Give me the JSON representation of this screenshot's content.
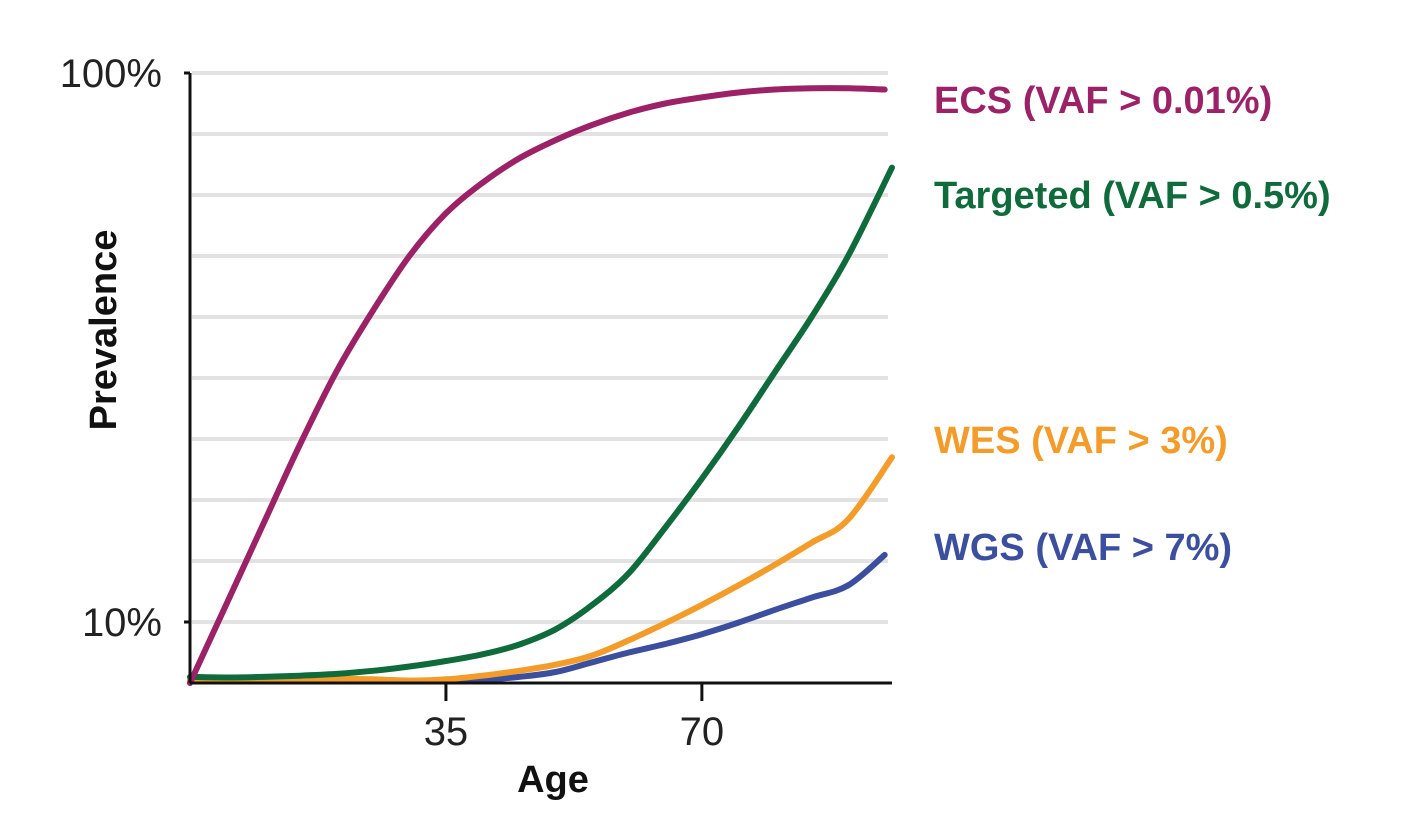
{
  "chart_data": {
    "type": "line",
    "title": "",
    "xlabel": "Age",
    "ylabel": "Prevalence",
    "xlim": [
      0,
      96
    ],
    "ylim": [
      0,
      1
    ],
    "x_ticks": [
      {
        "value": 35,
        "label": "35"
      },
      {
        "value": 70,
        "label": "70"
      }
    ],
    "y_ticks": [
      {
        "value": 0.1,
        "label": "10%"
      },
      {
        "value": 1.0,
        "label": "100%"
      }
    ],
    "gridlines": [
      0.1,
      0.2,
      0.3,
      0.4,
      0.5,
      0.6,
      0.7,
      0.8,
      0.9,
      1.0
    ],
    "grid": true,
    "legend_placement": "right",
    "series": [
      {
        "name": "ECS (VAF > 0.01%)",
        "color": "#9b2266",
        "x": [
          0,
          5,
          10,
          15,
          20,
          25,
          30,
          35,
          40,
          45,
          50,
          55,
          60,
          65,
          70,
          75,
          80,
          85,
          90,
          95
        ],
        "y": [
          0.0,
          0.13,
          0.26,
          0.39,
          0.51,
          0.61,
          0.7,
          0.77,
          0.82,
          0.86,
          0.89,
          0.915,
          0.935,
          0.95,
          0.96,
          0.968,
          0.973,
          0.975,
          0.975,
          0.973
        ]
      },
      {
        "name": "Targeted (VAF > 0.5%)",
        "color": "#0f6b3c",
        "x": [
          0,
          5,
          10,
          15,
          20,
          25,
          30,
          35,
          40,
          45,
          50,
          55,
          60,
          65,
          70,
          75,
          80,
          85,
          90,
          96
        ],
        "y": [
          0.01,
          0.009,
          0.01,
          0.012,
          0.015,
          0.02,
          0.027,
          0.036,
          0.047,
          0.063,
          0.088,
          0.128,
          0.18,
          0.255,
          0.335,
          0.42,
          0.51,
          0.6,
          0.7,
          0.845
        ]
      },
      {
        "name": "WES (VAF > 3%)",
        "color": "#f39c2a",
        "x": [
          0,
          5,
          10,
          15,
          20,
          25,
          30,
          35,
          40,
          45,
          50,
          55,
          60,
          65,
          70,
          75,
          80,
          85,
          90,
          96
        ],
        "y": [
          0.005,
          0.005,
          0.006,
          0.007,
          0.007,
          0.006,
          0.004,
          0.006,
          0.012,
          0.02,
          0.03,
          0.045,
          0.07,
          0.098,
          0.128,
          0.16,
          0.194,
          0.23,
          0.268,
          0.37
        ]
      },
      {
        "name": "WGS (VAF > 7%)",
        "color": "#3b4f9e",
        "x": [
          0,
          5,
          10,
          15,
          20,
          25,
          30,
          35,
          40,
          45,
          50,
          55,
          60,
          65,
          70,
          75,
          80,
          85,
          90,
          95
        ],
        "y": [
          0.005,
          0.005,
          0.005,
          0.004,
          0.004,
          0.004,
          0.003,
          0.003,
          0.005,
          0.01,
          0.018,
          0.034,
          0.05,
          0.064,
          0.08,
          0.099,
          0.12,
          0.14,
          0.16,
          0.21
        ]
      }
    ]
  }
}
